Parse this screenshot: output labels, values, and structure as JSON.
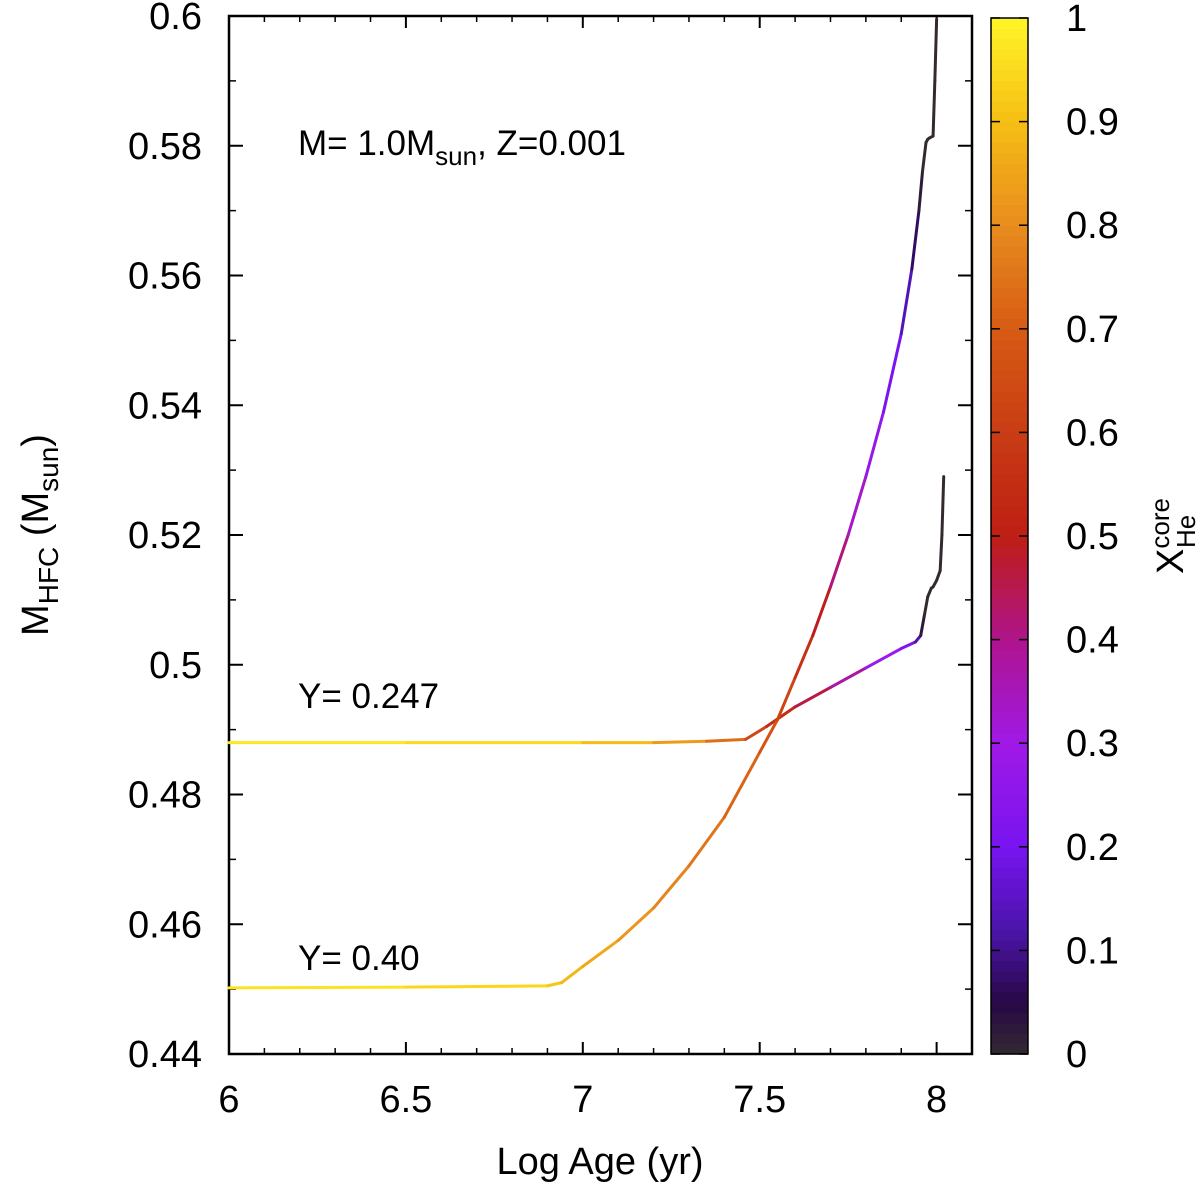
{
  "chart_data": {
    "type": "line",
    "xlabel": "Log Age (yr)",
    "ylabel": {
      "main": "M",
      "sub": "HFC",
      "unit_open": " (M",
      "unit_sub": "sun",
      "unit_close": ")"
    },
    "xlim": [
      6,
      8.1
    ],
    "ylim": [
      0.44,
      0.6
    ],
    "xticks": [
      6,
      6.5,
      7,
      7.5,
      8
    ],
    "xtick_labels": [
      "6",
      "6.5",
      "7",
      "7.5",
      "8"
    ],
    "yticks": [
      0.44,
      0.46,
      0.48,
      0.5,
      0.52,
      0.54,
      0.56,
      0.58,
      0.6
    ],
    "ytick_labels": [
      "0.44",
      "0.46",
      "0.48",
      "0.5",
      "0.52",
      "0.54",
      "0.56",
      "0.58",
      "0.6"
    ],
    "annotation": {
      "prefix": "M= 1.0M",
      "sub": "sun",
      "suffix": ", Z=0.001"
    },
    "colorbar": {
      "label_main": "X",
      "label_sup": "core",
      "label_sub": "He",
      "range": [
        0,
        1
      ],
      "ticks": [
        0,
        0.1,
        0.2,
        0.3,
        0.4,
        0.5,
        0.6,
        0.7,
        0.8,
        0.9,
        1
      ],
      "tick_labels": [
        "0",
        "0.1",
        "0.2",
        "0.3",
        "0.4",
        "0.5",
        "0.6",
        "0.7",
        "0.8",
        "0.9",
        "1"
      ]
    },
    "series": [
      {
        "name": "Y= 0.247",
        "x": [
          6.0,
          6.5,
          7.0,
          7.2,
          7.35,
          7.46,
          7.52,
          7.6,
          7.7,
          7.8,
          7.9,
          7.94,
          7.955,
          7.965,
          7.975,
          7.985,
          7.99,
          7.995,
          8.0,
          8.01,
          8.015,
          8.02
        ],
        "y": [
          0.488,
          0.488,
          0.488,
          0.488,
          0.4882,
          0.4885,
          0.4905,
          0.4935,
          0.4965,
          0.4995,
          0.5025,
          0.5035,
          0.5045,
          0.5075,
          0.5105,
          0.5118,
          0.512,
          0.5125,
          0.513,
          0.5145,
          0.52,
          0.529
        ],
        "color_value": [
          0.98,
          0.97,
          0.93,
          0.86,
          0.8,
          0.68,
          0.6,
          0.5,
          0.42,
          0.33,
          0.25,
          0.2,
          0.05,
          0.0,
          0.0,
          0.0,
          0.0,
          0.0,
          0.0,
          0.0,
          0.0,
          0.0
        ]
      },
      {
        "name": "Y= 0.40",
        "x": [
          6.0,
          6.5,
          6.9,
          6.94,
          7.0,
          7.1,
          7.2,
          7.3,
          7.4,
          7.5,
          7.55,
          7.6,
          7.65,
          7.7,
          7.75,
          7.8,
          7.85,
          7.9,
          7.93,
          7.95,
          7.96,
          7.97,
          7.975,
          7.98,
          7.99,
          7.995,
          8.0
        ],
        "y": [
          0.4502,
          0.4503,
          0.4505,
          0.451,
          0.4535,
          0.4575,
          0.4625,
          0.469,
          0.4765,
          0.4865,
          0.4915,
          0.498,
          0.5045,
          0.512,
          0.52,
          0.529,
          0.539,
          0.551,
          0.561,
          0.57,
          0.576,
          0.5805,
          0.581,
          0.5812,
          0.5815,
          0.59,
          0.5995
        ],
        "color_value": [
          0.97,
          0.96,
          0.93,
          0.9,
          0.87,
          0.84,
          0.8,
          0.77,
          0.74,
          0.7,
          0.66,
          0.6,
          0.53,
          0.45,
          0.37,
          0.3,
          0.24,
          0.17,
          0.1,
          0.04,
          0.0,
          0.0,
          0.0,
          0.0,
          0.0,
          0.0,
          0.0
        ]
      }
    ],
    "series_labels": [
      {
        "text": "Y= 0.247"
      },
      {
        "text": "Y= 0.40"
      }
    ]
  }
}
